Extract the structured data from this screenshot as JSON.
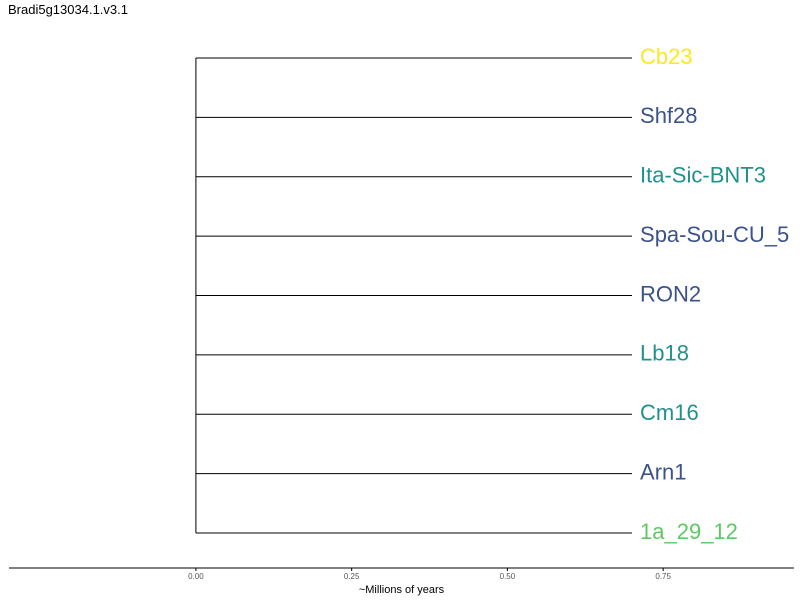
{
  "chart_data": {
    "type": "dendrogram",
    "title": "Bradi5g13034.1.v3.1",
    "xlabel": "~Millions of years",
    "ylabel": "",
    "xlim": [
      -0.3,
      0.96
    ],
    "xticks": [
      0.0,
      0.25,
      0.5,
      0.75
    ],
    "xtick_labels": [
      "0.00",
      "0.25",
      "0.50",
      "0.75"
    ],
    "grid": false,
    "root_x": 0.0,
    "leaf_x": 0.7,
    "leaves": [
      {
        "label": "Cb23",
        "color": "#fde725"
      },
      {
        "label": "Shf28",
        "color": "#3b528b"
      },
      {
        "label": "Ita-Sic-BNT3",
        "color": "#21918c"
      },
      {
        "label": "Spa-Sou-CU_5",
        "color": "#3b528b"
      },
      {
        "label": "RON2",
        "color": "#3b528b"
      },
      {
        "label": "Lb18",
        "color": "#21918c"
      },
      {
        "label": "Cm16",
        "color": "#21918c"
      },
      {
        "label": "Arn1",
        "color": "#3b528b"
      },
      {
        "label": "1a_29_12",
        "color": "#5ec962"
      }
    ]
  }
}
